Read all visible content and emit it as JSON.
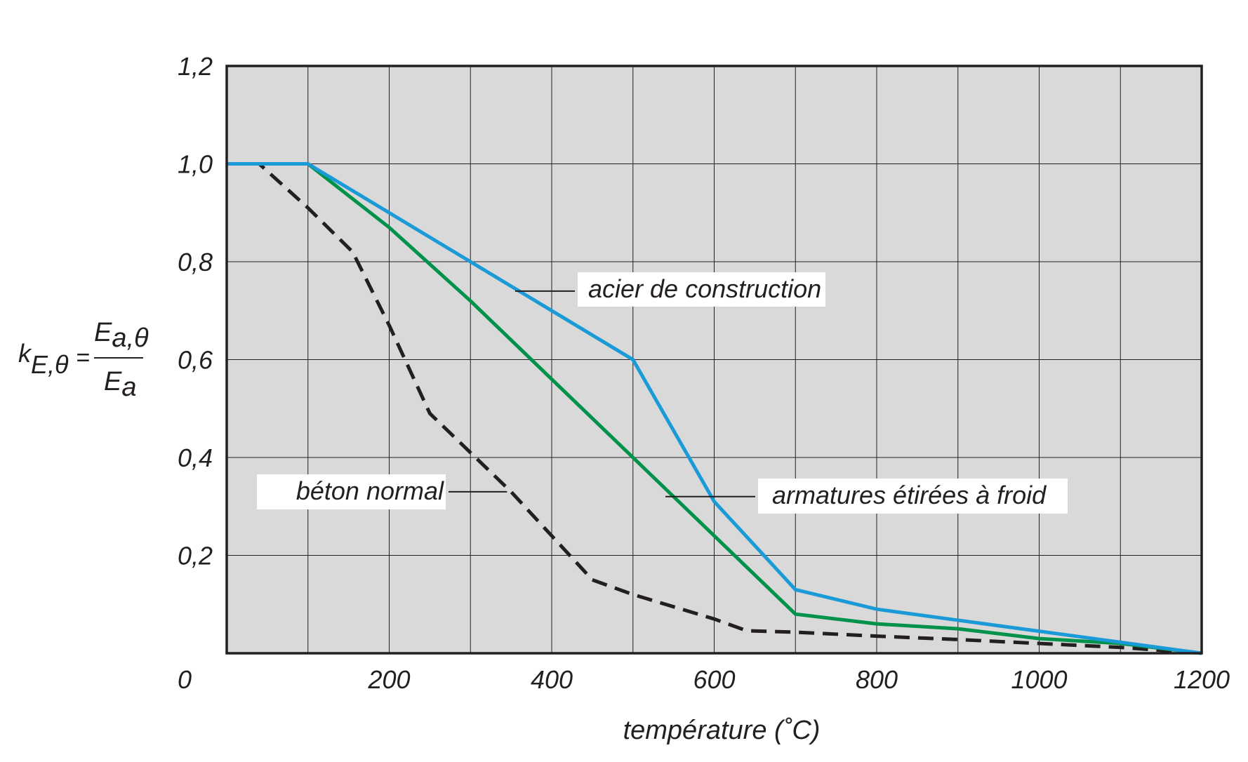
{
  "chart_data": {
    "type": "line",
    "title": "",
    "xlabel": "température (˚C)",
    "ylabel": {
      "lhs": "k",
      "lhs_sub": "E,θ",
      "eq": "=",
      "num": "E",
      "num_sub": "a,θ",
      "den": "E",
      "den_sub": "a"
    },
    "xlim": [
      0,
      1200
    ],
    "ylim": [
      0,
      1.2
    ],
    "xticks": [
      0,
      100,
      200,
      300,
      400,
      500,
      600,
      700,
      800,
      900,
      1000,
      1100,
      1200
    ],
    "xtick_labels": [
      "0",
      "200",
      "400",
      "600",
      "800",
      "1000",
      "1200"
    ],
    "xtick_label_values": [
      0,
      200,
      400,
      600,
      800,
      1000,
      1200
    ],
    "yticks": [
      0,
      0.2,
      0.4,
      0.6,
      0.8,
      1.0,
      1.2
    ],
    "ytick_labels": [
      "",
      "0,2",
      "0,4",
      "0,6",
      "0,8",
      "1,0",
      "1,2"
    ],
    "grid": true,
    "background": "#d9d9d9",
    "series": [
      {
        "name": "béton normal",
        "color": "#231f20",
        "dashed": true,
        "x": [
          0,
          40,
          100,
          155,
          200,
          250,
          300,
          350,
          400,
          450,
          500,
          600,
          640,
          700,
          800,
          900,
          1000,
          1100,
          1200
        ],
        "y": [
          1.0,
          1.0,
          0.91,
          0.82,
          0.67,
          0.49,
          0.41,
          0.33,
          0.24,
          0.15,
          0.12,
          0.07,
          0.046,
          0.043,
          0.035,
          0.028,
          0.02,
          0.012,
          0.0
        ]
      },
      {
        "name": "armatures étirées à froid",
        "color": "#00924a",
        "dashed": false,
        "x": [
          0,
          100,
          200,
          300,
          400,
          500,
          600,
          700,
          800,
          900,
          1000,
          1100,
          1200
        ],
        "y": [
          1.0,
          1.0,
          0.87,
          0.72,
          0.56,
          0.4,
          0.24,
          0.08,
          0.06,
          0.05,
          0.03,
          0.02,
          0.0
        ]
      },
      {
        "name": "acier de construction",
        "color": "#1a9ad6",
        "dashed": false,
        "x": [
          0,
          100,
          500,
          600,
          700,
          800,
          900,
          1000,
          1100,
          1200
        ],
        "y": [
          1.0,
          1.0,
          0.6,
          0.31,
          0.13,
          0.09,
          0.0675,
          0.045,
          0.0225,
          0.0
        ]
      }
    ],
    "annotations": [
      {
        "text": "acier de construction",
        "series": "acier de construction",
        "x": 355,
        "y": 0.74
      },
      {
        "text": "armatures étirées à froid",
        "series": "armatures étirées à froid",
        "x": 540,
        "y": 0.32
      },
      {
        "text": "béton normal",
        "series": "béton normal",
        "x": 345,
        "y": 0.33
      }
    ]
  }
}
